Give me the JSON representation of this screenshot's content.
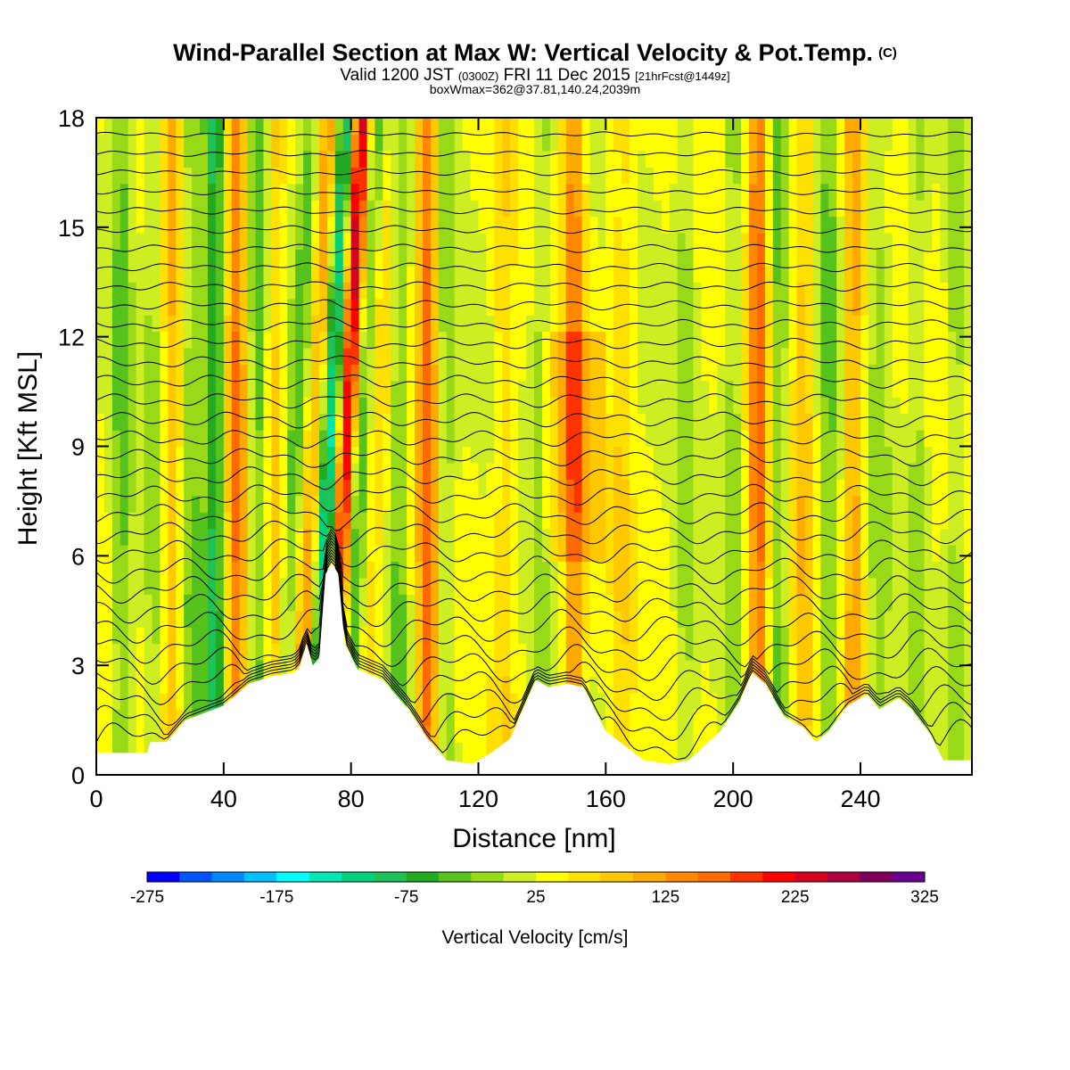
{
  "title": {
    "main": "Wind-Parallel Section at Max W: Vertical Velocity & Pot.Temp.",
    "copyright": "(C)",
    "valid_prefix": "Valid 1200 JST",
    "valid_zulu": "(0300Z)",
    "valid_date": "FRI 11 Dec 2015",
    "forecast": "[21hrFcst@1449z]",
    "box": "boxWmax=362@37.81,140.24,2039m"
  },
  "chart_data": {
    "type": "heatmap",
    "xlabel": "Distance [nm]",
    "ylabel": "Height [Kft MSL]",
    "xlim": [
      0,
      275
    ],
    "ylim": [
      0,
      18
    ],
    "x_ticks": [
      "0",
      "40",
      "80",
      "120",
      "160",
      "200",
      "240"
    ],
    "y_ticks": [
      "0",
      "3",
      "6",
      "9",
      "12",
      "15",
      "18"
    ],
    "x_tick_values": [
      0,
      40,
      80,
      120,
      160,
      200,
      240
    ],
    "y_tick_values": [
      0,
      3,
      6,
      9,
      12,
      15,
      18
    ],
    "contour_field": "Pot.Temp.",
    "terrain_kft": [
      [
        0,
        0.6
      ],
      [
        16,
        0.6
      ],
      [
        17,
        0.9
      ],
      [
        22,
        0.9
      ],
      [
        28,
        1.5
      ],
      [
        40,
        1.9
      ],
      [
        48,
        2.5
      ],
      [
        55,
        2.7
      ],
      [
        62,
        2.8
      ],
      [
        64,
        3.0
      ],
      [
        66,
        3.6
      ],
      [
        68,
        3.0
      ],
      [
        70,
        3.2
      ],
      [
        72,
        5.5
      ],
      [
        74,
        5.8
      ],
      [
        76,
        5.5
      ],
      [
        78,
        3.6
      ],
      [
        82,
        2.9
      ],
      [
        90,
        2.6
      ],
      [
        98,
        1.8
      ],
      [
        104,
        1.0
      ],
      [
        110,
        0.4
      ],
      [
        118,
        0.3
      ],
      [
        124,
        0.6
      ],
      [
        130,
        1.0
      ],
      [
        138,
        2.6
      ],
      [
        142,
        2.4
      ],
      [
        148,
        2.5
      ],
      [
        153,
        2.4
      ],
      [
        160,
        1.2
      ],
      [
        172,
        0.4
      ],
      [
        180,
        0.3
      ],
      [
        186,
        0.4
      ],
      [
        196,
        1.2
      ],
      [
        202,
        2.0
      ],
      [
        206,
        2.8
      ],
      [
        210,
        2.5
      ],
      [
        216,
        1.6
      ],
      [
        222,
        1.3
      ],
      [
        226,
        0.9
      ],
      [
        230,
        1.2
      ],
      [
        236,
        1.9
      ],
      [
        242,
        2.2
      ],
      [
        246,
        1.8
      ],
      [
        252,
        2.1
      ],
      [
        256,
        1.8
      ],
      [
        262,
        1.1
      ],
      [
        266,
        0.4
      ],
      [
        275,
        0.4
      ]
    ],
    "w_features": [
      {
        "x": 8,
        "w": -60
      },
      {
        "x": 18,
        "w": -35
      },
      {
        "x": 24,
        "w": 65
      },
      {
        "x": 30,
        "w": -55
      },
      {
        "x": 37,
        "w": -110
      },
      {
        "x": 44,
        "w": 115
      },
      {
        "x": 51,
        "w": -70
      },
      {
        "x": 56,
        "w": 60
      },
      {
        "x": 62,
        "w": -65
      },
      {
        "x": 68,
        "w": 95
      },
      {
        "x": 73,
        "w": -170
      },
      {
        "x": 78,
        "w": 230
      },
      {
        "x": 82,
        "w": -95
      },
      {
        "x": 88,
        "w": 40
      },
      {
        "x": 95,
        "w": -60
      },
      {
        "x": 104,
        "w": 130
      },
      {
        "x": 110,
        "w": -45
      },
      {
        "x": 128,
        "w": 40
      },
      {
        "x": 140,
        "w": -45
      },
      {
        "x": 150,
        "w": 110
      },
      {
        "x": 165,
        "w": 40
      },
      {
        "x": 185,
        "w": -40
      },
      {
        "x": 200,
        "w": -45
      },
      {
        "x": 208,
        "w": 130
      },
      {
        "x": 214,
        "w": -60
      },
      {
        "x": 222,
        "w": 60
      },
      {
        "x": 230,
        "w": -55
      },
      {
        "x": 238,
        "w": 85
      },
      {
        "x": 246,
        "w": -40
      },
      {
        "x": 258,
        "w": -40
      },
      {
        "x": 270,
        "w": -45
      }
    ]
  },
  "colorbar": {
    "title": "Vertical Velocity [cm/s]",
    "min": -275,
    "max": 325,
    "step": 25,
    "tick_labels": [
      "-275",
      "-175",
      "-75",
      "25",
      "125",
      "225",
      "325"
    ],
    "colors": [
      "#0000ff",
      "#0055ff",
      "#0088ff",
      "#00c0ff",
      "#00ffff",
      "#00e8b4",
      "#00d27a",
      "#1cc25a",
      "#22aa22",
      "#55c21e",
      "#99da18",
      "#ccee22",
      "#ffff00",
      "#ffe000",
      "#ffc800",
      "#ffaa00",
      "#ff8800",
      "#ff6a00",
      "#ff3300",
      "#ff0000",
      "#d80020",
      "#b00040",
      "#800060",
      "#6a0090"
    ]
  }
}
